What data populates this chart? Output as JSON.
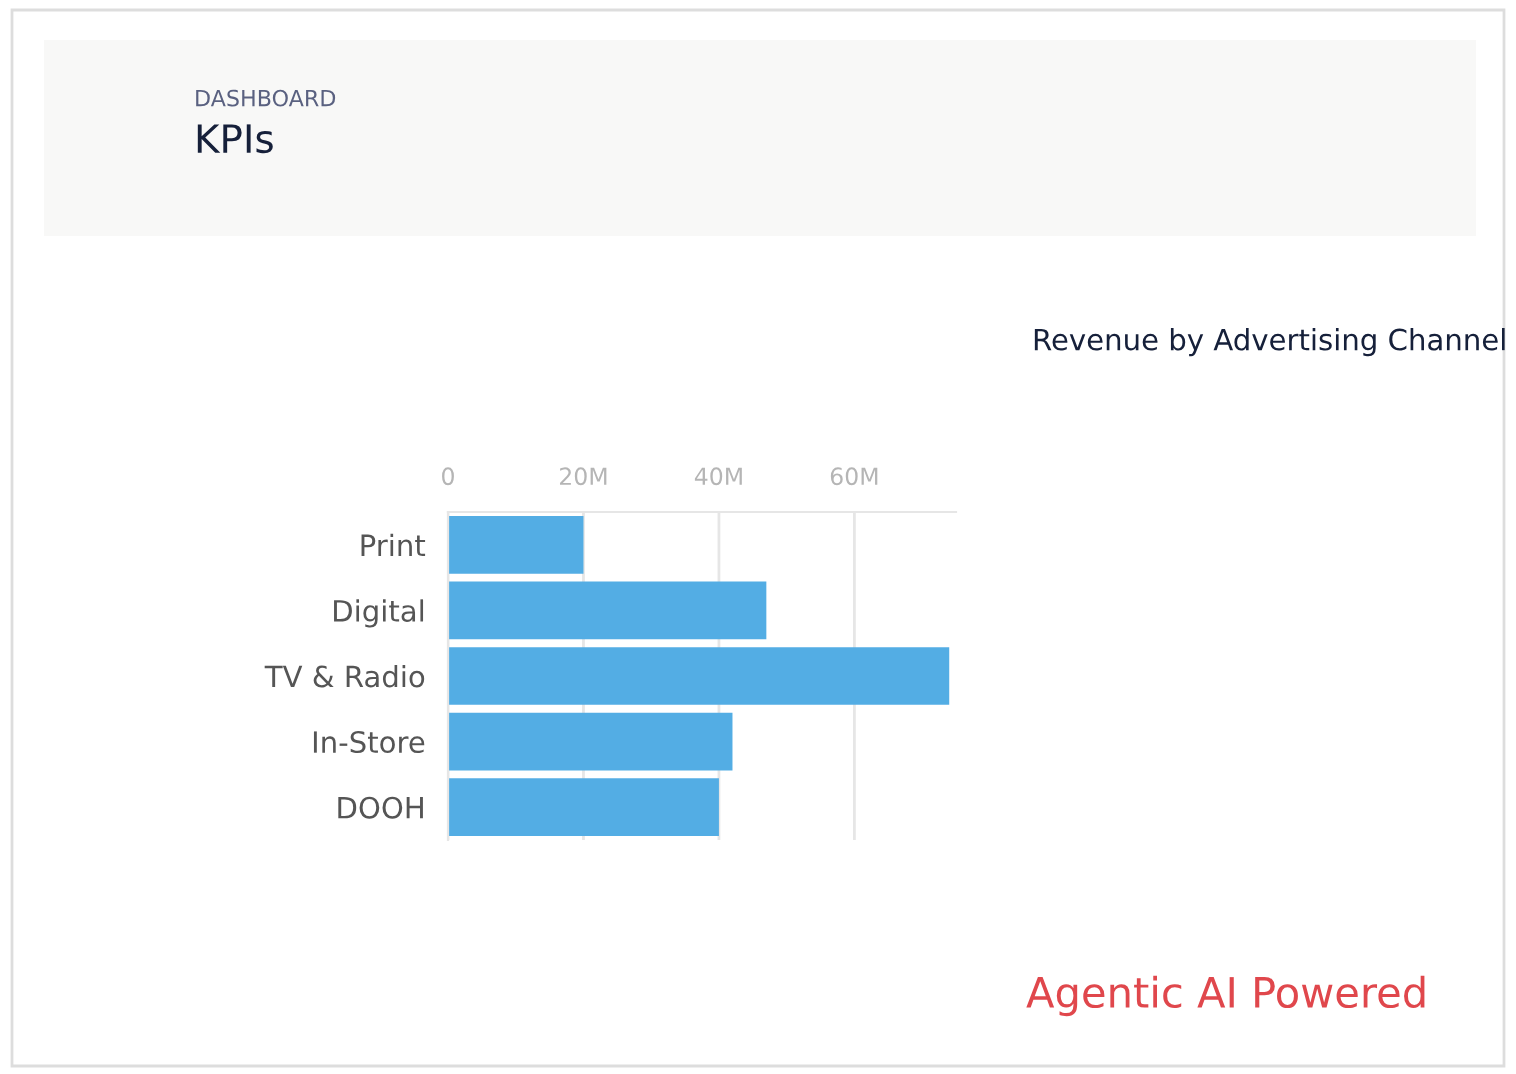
{
  "chart_data": {
    "type": "bar",
    "orientation": "horizontal",
    "title": "KPIs",
    "subtitle": "DASHBOARD",
    "annotations": [
      "Revenue by Advertising Channel",
      "Agentic AI Powered"
    ],
    "categories": [
      "Print",
      "Digital",
      "TV & Radio",
      "In-Store",
      "DOOH"
    ],
    "values": [
      20,
      47,
      74,
      42,
      40
    ],
    "color": "#53ade4",
    "xlim": [
      0,
      75
    ],
    "xticks": [
      0,
      {
        "value": 20,
        "label": "20M"
      },
      {
        "value": 40,
        "label": "40M"
      },
      {
        "value": 60,
        "label": "60M"
      }
    ],
    "grid": "x"
  }
}
